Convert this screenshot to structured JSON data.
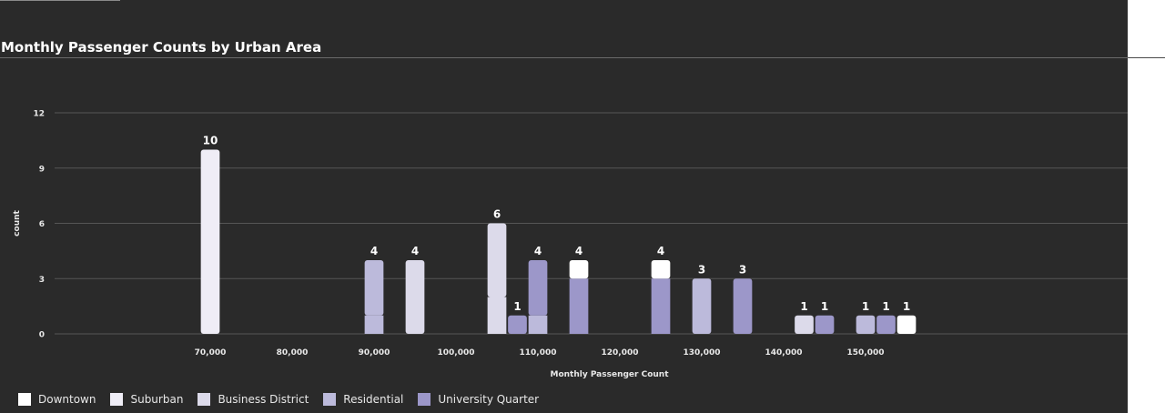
{
  "chart_data": {
    "type": "bar",
    "title": "Monthly Passenger Counts by Urban Area",
    "xlabel": "Monthly Passenger Count",
    "ylabel": "count",
    "yticks": [
      0,
      3,
      6,
      9,
      12
    ],
    "ylim": [
      0,
      12
    ],
    "xticks": [
      70000,
      80000,
      90000,
      100000,
      110000,
      120000,
      130000,
      140000,
      150000
    ],
    "xtick_labels": [
      "70,000",
      "80,000",
      "90,000",
      "100,000",
      "110,000",
      "120,000",
      "130,000",
      "140,000",
      "150,000"
    ],
    "xlim": [
      51000,
      182000
    ],
    "bin_width": 2500,
    "grid": true,
    "legend_position": "bottom-left",
    "series": [
      {
        "name": "Downtown",
        "color": "#ffffff"
      },
      {
        "name": "Suburban",
        "color": "#efedf6"
      },
      {
        "name": "Business District",
        "color": "#dcdaea"
      },
      {
        "name": "Residential",
        "color": "#bcbadb"
      },
      {
        "name": "University Quarter",
        "color": "#9c97c9"
      }
    ],
    "bars": [
      {
        "x": 70000,
        "label": "10",
        "segments": [
          {
            "series": "Suburban",
            "value": 10
          }
        ]
      },
      {
        "x": 90000,
        "label": "4",
        "segments": [
          {
            "series": "Residential",
            "value": 1
          },
          {
            "series": "Residential",
            "value": 3
          }
        ]
      },
      {
        "x": 95000,
        "label": "4",
        "segments": [
          {
            "series": "Business District",
            "value": 4
          }
        ]
      },
      {
        "x": 105000,
        "label": "6",
        "segments": [
          {
            "series": "Business District",
            "value": 2
          },
          {
            "series": "Business District",
            "value": 4
          }
        ]
      },
      {
        "x": 107500,
        "label": "1",
        "segments": [
          {
            "series": "University Quarter",
            "value": 1
          }
        ]
      },
      {
        "x": 110000,
        "label": "4",
        "segments": [
          {
            "series": "Residential",
            "value": 1
          },
          {
            "series": "University Quarter",
            "value": 3
          }
        ]
      },
      {
        "x": 115000,
        "label": "4",
        "segments": [
          {
            "series": "University Quarter",
            "value": 3
          },
          {
            "series": "Downtown",
            "value": 1
          }
        ]
      },
      {
        "x": 125000,
        "label": "4",
        "segments": [
          {
            "series": "University Quarter",
            "value": 3
          },
          {
            "series": "Downtown",
            "value": 1
          }
        ]
      },
      {
        "x": 130000,
        "label": "3",
        "segments": [
          {
            "series": "Residential",
            "value": 3
          }
        ]
      },
      {
        "x": 135000,
        "label": "3",
        "segments": [
          {
            "series": "University Quarter",
            "value": 3
          }
        ]
      },
      {
        "x": 142500,
        "label": "1",
        "segments": [
          {
            "series": "Business District",
            "value": 1
          }
        ]
      },
      {
        "x": 145000,
        "label": "1",
        "segments": [
          {
            "series": "University Quarter",
            "value": 1
          }
        ]
      },
      {
        "x": 150000,
        "label": "1",
        "segments": [
          {
            "series": "Residential",
            "value": 1
          }
        ]
      },
      {
        "x": 152500,
        "label": "1",
        "segments": [
          {
            "series": "University Quarter",
            "value": 1
          }
        ]
      },
      {
        "x": 155000,
        "label": "1",
        "segments": [
          {
            "series": "Downtown",
            "value": 1
          }
        ]
      }
    ]
  }
}
